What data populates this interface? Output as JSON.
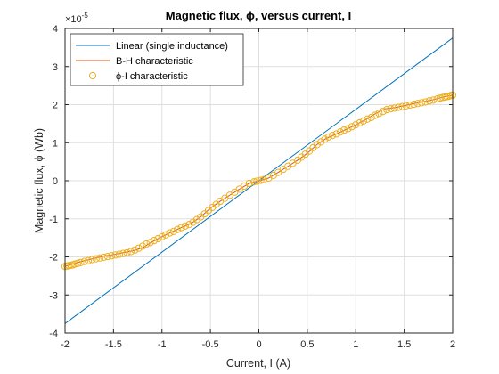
{
  "chart_data": {
    "type": "line",
    "title": "Magnetic flux, ϕ, versus current, I",
    "xlabel": "Current, I (A)",
    "ylabel": "Magnetic flux, ϕ (Wb)",
    "y_exponent_label": "×10",
    "y_exponent_power": "-5",
    "xlim": [
      -2,
      2
    ],
    "ylim": [
      -4,
      4
    ],
    "x_ticks": [
      -2,
      -1.5,
      -1,
      -0.5,
      0,
      0.5,
      1,
      1.5,
      2
    ],
    "x_tick_labels": [
      "-2",
      "-1.5",
      "-1",
      "-0.5",
      "0",
      "0.5",
      "1",
      "1.5",
      "2"
    ],
    "y_ticks": [
      -4,
      -3,
      -2,
      -1,
      0,
      1,
      2,
      3,
      4
    ],
    "y_tick_labels": [
      "-4",
      "-3",
      "-2",
      "-1",
      "0",
      "1",
      "2",
      "3",
      "4"
    ],
    "grid": true,
    "legend_position": "top-left",
    "series": [
      {
        "name": "Linear (single inductance)",
        "style": "line",
        "color": "#0072BD",
        "x": [
          -2,
          2
        ],
        "y": [
          -3.75,
          3.75
        ]
      },
      {
        "name": "B-H characteristic",
        "style": "line",
        "color": "#D95319",
        "x": [
          -2,
          -1.9,
          -1.8,
          -1.7,
          -1.6,
          -1.5,
          -1.4,
          -1.3,
          -1.2,
          -1.1,
          -1.0,
          -0.9,
          -0.8,
          -0.7,
          -0.6,
          -0.5,
          -0.4,
          -0.3,
          -0.2,
          -0.1,
          0,
          0.1,
          0.2,
          0.3,
          0.4,
          0.5,
          0.6,
          0.7,
          0.8,
          0.9,
          1.0,
          1.1,
          1.2,
          1.3,
          1.4,
          1.5,
          1.6,
          1.7,
          1.8,
          1.9,
          2
        ],
        "y": [
          -2.25,
          -2.17,
          -2.1,
          -2.04,
          -1.98,
          -1.94,
          -1.89,
          -1.84,
          -1.76,
          -1.6,
          -1.47,
          -1.35,
          -1.23,
          -1.12,
          -0.95,
          -0.72,
          -0.54,
          -0.38,
          -0.22,
          -0.07,
          0,
          0.07,
          0.22,
          0.38,
          0.54,
          0.72,
          0.95,
          1.12,
          1.23,
          1.35,
          1.47,
          1.6,
          1.76,
          1.89,
          1.92,
          1.97,
          2.03,
          2.08,
          2.13,
          2.2,
          2.25
        ]
      },
      {
        "name": "ϕ-I characteristic",
        "style": "markers",
        "color": "#EDB120",
        "x": [
          -2,
          -1.98,
          -1.96,
          -1.94,
          -1.92,
          -1.9,
          -1.87,
          -1.84,
          -1.8,
          -1.76,
          -1.72,
          -1.68,
          -1.64,
          -1.6,
          -1.56,
          -1.52,
          -1.48,
          -1.44,
          -1.4,
          -1.36,
          -1.32,
          -1.28,
          -1.24,
          -1.2,
          -1.16,
          -1.12,
          -1.08,
          -1.04,
          -1.0,
          -0.96,
          -0.92,
          -0.88,
          -0.84,
          -0.8,
          -0.76,
          -0.72,
          -0.68,
          -0.64,
          -0.6,
          -0.56,
          -0.52,
          -0.48,
          -0.44,
          -0.4,
          -0.35,
          -0.3,
          -0.25,
          -0.2,
          -0.15,
          -0.1,
          -0.05,
          -0.02,
          0.02,
          0.05,
          0.1,
          0.15,
          0.2,
          0.25,
          0.3,
          0.35,
          0.4,
          0.44,
          0.48,
          0.52,
          0.56,
          0.6,
          0.64,
          0.68,
          0.72,
          0.76,
          0.8,
          0.84,
          0.88,
          0.92,
          0.96,
          1.0,
          1.04,
          1.08,
          1.12,
          1.16,
          1.2,
          1.24,
          1.28,
          1.32,
          1.36,
          1.4,
          1.44,
          1.48,
          1.52,
          1.56,
          1.6,
          1.64,
          1.68,
          1.72,
          1.76,
          1.8,
          1.84,
          1.87,
          1.9,
          1.92,
          1.94,
          1.96,
          1.98,
          2
        ],
        "y": [
          -2.25,
          -2.24,
          -2.23,
          -2.22,
          -2.21,
          -2.19,
          -2.17,
          -2.15,
          -2.12,
          -2.1,
          -2.07,
          -2.05,
          -2.03,
          -2.01,
          -1.99,
          -1.97,
          -1.95,
          -1.93,
          -1.91,
          -1.89,
          -1.86,
          -1.82,
          -1.77,
          -1.72,
          -1.66,
          -1.62,
          -1.57,
          -1.52,
          -1.47,
          -1.42,
          -1.37,
          -1.33,
          -1.28,
          -1.23,
          -1.19,
          -1.15,
          -1.09,
          -1.02,
          -0.95,
          -0.87,
          -0.78,
          -0.7,
          -0.62,
          -0.54,
          -0.46,
          -0.38,
          -0.3,
          -0.22,
          -0.14,
          -0.07,
          -0.03,
          -0.01,
          0.01,
          0.03,
          0.07,
          0.14,
          0.22,
          0.3,
          0.38,
          0.46,
          0.54,
          0.62,
          0.7,
          0.78,
          0.87,
          0.95,
          1.02,
          1.09,
          1.15,
          1.19,
          1.23,
          1.28,
          1.33,
          1.37,
          1.42,
          1.47,
          1.52,
          1.57,
          1.62,
          1.66,
          1.72,
          1.77,
          1.82,
          1.87,
          1.89,
          1.91,
          1.93,
          1.95,
          1.97,
          1.99,
          2.01,
          2.03,
          2.05,
          2.07,
          2.1,
          2.12,
          2.15,
          2.17,
          2.19,
          2.2,
          2.21,
          2.22,
          2.24,
          2.25
        ]
      }
    ]
  }
}
